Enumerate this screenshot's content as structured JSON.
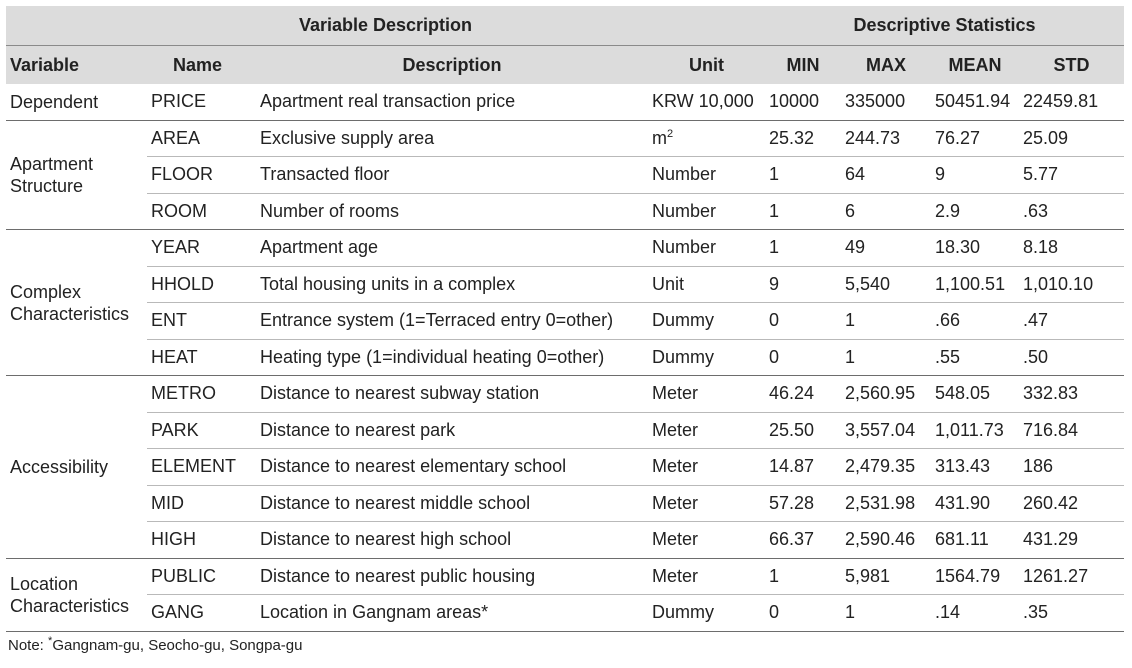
{
  "header": {
    "group_variable_description": "Variable Description",
    "group_descriptive_statistics": "Descriptive Statistics",
    "columns": [
      "Variable",
      "Name",
      "Description",
      "Unit",
      "MIN",
      "MAX",
      "MEAN",
      "STD"
    ]
  },
  "groups": {
    "dependent": "Dependent",
    "structure_line1": "Apartment",
    "structure_line2": "Structure",
    "complex_line1": "Complex",
    "complex_line2": "Characteristics",
    "accessibility": "Accessibility",
    "location_line1": "Location",
    "location_line2": "Characteristics"
  },
  "rows": [
    {
      "name": "PRICE",
      "description": "Apartment real transaction price",
      "unit": "KRW 10,000",
      "unit_sup": "",
      "min": "10000",
      "max": "335000",
      "mean": "50451.94",
      "std": "22459.81"
    },
    {
      "name": "AREA",
      "description": "Exclusive supply area",
      "unit": "m",
      "unit_sup": "2",
      "min": "25.32",
      "max": "244.73",
      "mean": "76.27",
      "std": "25.09"
    },
    {
      "name": "FLOOR",
      "description": "Transacted floor",
      "unit": "Number",
      "unit_sup": "",
      "min": "1",
      "max": "64",
      "mean": "9",
      "std": "5.77"
    },
    {
      "name": "ROOM",
      "description": "Number of rooms",
      "unit": "Number",
      "unit_sup": "",
      "min": "1",
      "max": "6",
      "mean": "2.9",
      "std": ".63"
    },
    {
      "name": "YEAR",
      "description": "Apartment age",
      "unit": "Number",
      "unit_sup": "",
      "min": "1",
      "max": "49",
      "mean": "18.30",
      "std": "8.18"
    },
    {
      "name": "HHOLD",
      "description": "Total housing units in a complex",
      "unit": "Unit",
      "unit_sup": "",
      "min": "9",
      "max": "5,540",
      "mean": "1,100.51",
      "std": "1,010.10"
    },
    {
      "name": "ENT",
      "description": "Entrance system (1=Terraced entry 0=other)",
      "unit": "Dummy",
      "unit_sup": "",
      "min": "0",
      "max": "1",
      "mean": ".66",
      "std": ".47"
    },
    {
      "name": "HEAT",
      "description": "Heating type (1=individual heating 0=other)",
      "unit": "Dummy",
      "unit_sup": "",
      "min": "0",
      "max": "1",
      "mean": ".55",
      "std": ".50"
    },
    {
      "name": "METRO",
      "description": "Distance to nearest subway station",
      "unit": "Meter",
      "unit_sup": "",
      "min": "46.24",
      "max": "2,560.95",
      "mean": "548.05",
      "std": "332.83"
    },
    {
      "name": "PARK",
      "description": "Distance to nearest park",
      "unit": "Meter",
      "unit_sup": "",
      "min": "25.50",
      "max": "3,557.04",
      "mean": "1,011.73",
      "std": "716.84"
    },
    {
      "name": "ELEMENT",
      "description": "Distance to nearest elementary school",
      "unit": "Meter",
      "unit_sup": "",
      "min": "14.87",
      "max": "2,479.35",
      "mean": "313.43",
      "std": "186"
    },
    {
      "name": "MID",
      "description": "Distance to nearest middle school",
      "unit": "Meter",
      "unit_sup": "",
      "min": "57.28",
      "max": "2,531.98",
      "mean": "431.90",
      "std": "260.42"
    },
    {
      "name": "HIGH",
      "description": "Distance to nearest high school",
      "unit": "Meter",
      "unit_sup": "",
      "min": "66.37",
      "max": "2,590.46",
      "mean": "681.11",
      "std": "431.29"
    },
    {
      "name": "PUBLIC",
      "description": "Distance to nearest public housing",
      "unit": "Meter",
      "unit_sup": "",
      "min": "1",
      "max": "5,981",
      "mean": "1564.79",
      "std": "1261.27"
    },
    {
      "name": "GANG",
      "description": "Location in Gangnam areas*",
      "unit": "Dummy",
      "unit_sup": "",
      "min": "0",
      "max": "1",
      "mean": ".14",
      "std": ".35"
    }
  ],
  "note": {
    "prefix": "Note: ",
    "sup": "*",
    "text": "Gangnam-gu, Seocho-gu, Songpa-gu"
  }
}
